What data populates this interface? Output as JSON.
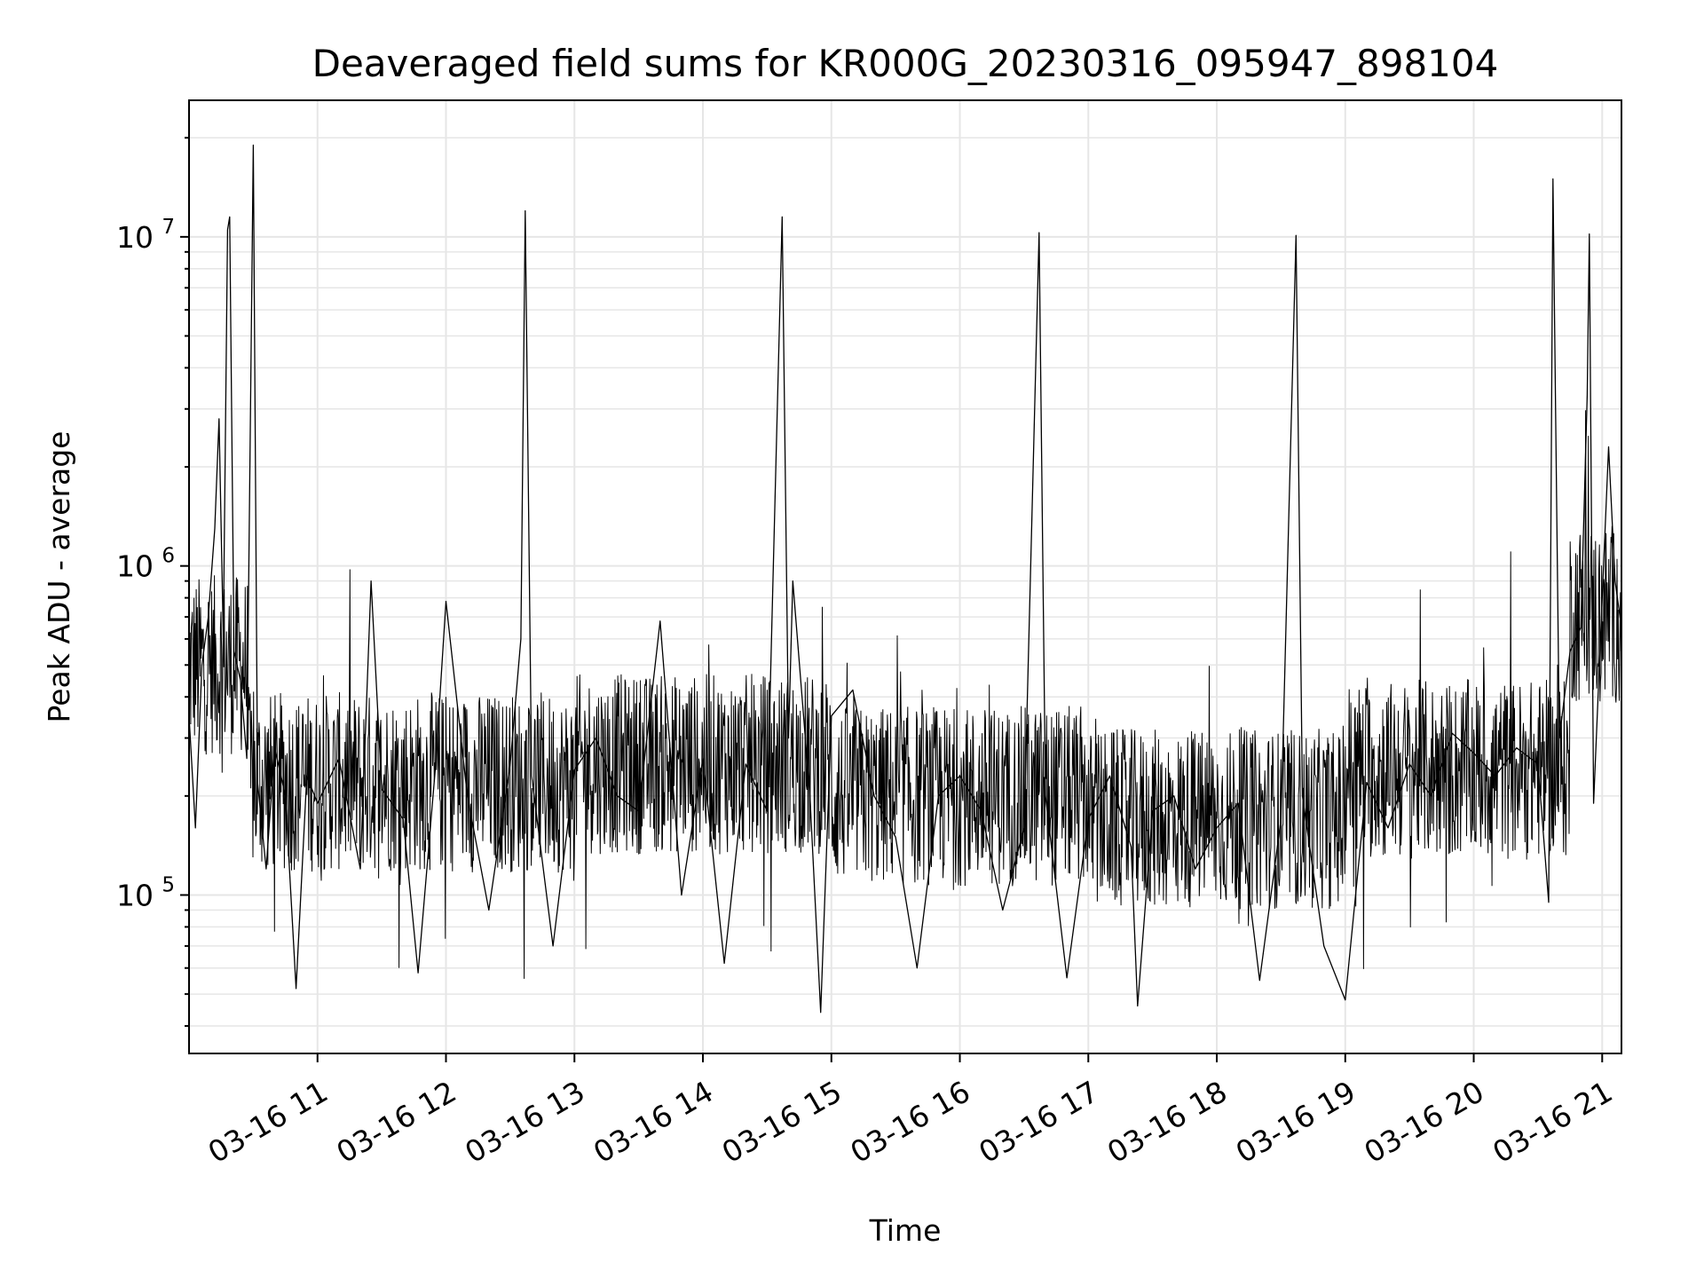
{
  "chart_data": {
    "type": "line",
    "title": "Deaveraged field sums for KR000G_20230316_095947_898104",
    "xlabel": "Time",
    "ylabel": "Peak ADU - average",
    "yscale": "log",
    "ylim": [
      33000,
      26000000
    ],
    "xlim": [
      "2023-03-16 10:00",
      "2023-03-16 21:09"
    ],
    "grid": true,
    "line_color": "#000000",
    "x_ticks": [
      {
        "label": "03-16 11",
        "t": "2023-03-16 11:00"
      },
      {
        "label": "03-16 12",
        "t": "2023-03-16 12:00"
      },
      {
        "label": "03-16 13",
        "t": "2023-03-16 13:00"
      },
      {
        "label": "03-16 14",
        "t": "2023-03-16 14:00"
      },
      {
        "label": "03-16 15",
        "t": "2023-03-16 15:00"
      },
      {
        "label": "03-16 16",
        "t": "2023-03-16 16:00"
      },
      {
        "label": "03-16 17",
        "t": "2023-03-16 17:00"
      },
      {
        "label": "03-16 18",
        "t": "2023-03-16 18:00"
      },
      {
        "label": "03-16 19",
        "t": "2023-03-16 19:00"
      },
      {
        "label": "03-16 20",
        "t": "2023-03-16 20:00"
      },
      {
        "label": "03-16 21",
        "t": "2023-03-16 21:00"
      }
    ],
    "y_ticks": [
      {
        "base": "10",
        "exp": "5",
        "value": 100000
      },
      {
        "base": "10",
        "exp": "6",
        "value": 1000000
      },
      {
        "base": "10",
        "exp": "7",
        "value": 10000000
      }
    ],
    "series": [
      {
        "points": [
          [
            "2023-03-16 10:00",
            350000
          ],
          [
            "2023-03-16 10:03",
            160000
          ],
          [
            "2023-03-16 10:06",
            500000
          ],
          [
            "2023-03-16 10:09",
            700000
          ],
          [
            "2023-03-16 10:12",
            1300000
          ],
          [
            "2023-03-16 10:14",
            2800000
          ],
          [
            "2023-03-16 10:16",
            600000
          ],
          [
            "2023-03-16 10:18",
            10500000
          ],
          [
            "2023-03-16 10:19",
            11500000
          ],
          [
            "2023-03-16 10:21",
            550000
          ],
          [
            "2023-03-16 10:24",
            450000
          ],
          [
            "2023-03-16 10:27",
            260000
          ],
          [
            "2023-03-16 10:30",
            19000000
          ],
          [
            "2023-03-16 10:32",
            220000
          ],
          [
            "2023-03-16 10:36",
            120000
          ],
          [
            "2023-03-16 10:40",
            280000
          ],
          [
            "2023-03-16 10:45",
            200000
          ],
          [
            "2023-03-16 10:50",
            52000
          ],
          [
            "2023-03-16 10:55",
            230000
          ],
          [
            "2023-03-16 11:00",
            190000
          ],
          [
            "2023-03-16 11:10",
            260000
          ],
          [
            "2023-03-16 11:20",
            120000
          ],
          [
            "2023-03-16 11:25",
            900000
          ],
          [
            "2023-03-16 11:30",
            210000
          ],
          [
            "2023-03-16 11:40",
            170000
          ],
          [
            "2023-03-16 11:47",
            58000
          ],
          [
            "2023-03-16 11:55",
            240000
          ],
          [
            "2023-03-16 12:00",
            780000
          ],
          [
            "2023-03-16 12:10",
            200000
          ],
          [
            "2023-03-16 12:20",
            90000
          ],
          [
            "2023-03-16 12:30",
            250000
          ],
          [
            "2023-03-16 12:35",
            600000
          ],
          [
            "2023-03-16 12:37",
            12000000
          ],
          [
            "2023-03-16 12:40",
            230000
          ],
          [
            "2023-03-16 12:50",
            70000
          ],
          [
            "2023-03-16 13:00",
            240000
          ],
          [
            "2023-03-16 13:10",
            300000
          ],
          [
            "2023-03-16 13:20",
            200000
          ],
          [
            "2023-03-16 13:30",
            180000
          ],
          [
            "2023-03-16 13:40",
            680000
          ],
          [
            "2023-03-16 13:50",
            100000
          ],
          [
            "2023-03-16 14:00",
            260000
          ],
          [
            "2023-03-16 14:10",
            62000
          ],
          [
            "2023-03-16 14:20",
            250000
          ],
          [
            "2023-03-16 14:30",
            180000
          ],
          [
            "2023-03-16 14:37",
            11500000
          ],
          [
            "2023-03-16 14:40",
            300000
          ],
          [
            "2023-03-16 14:42",
            900000
          ],
          [
            "2023-03-16 14:50",
            200000
          ],
          [
            "2023-03-16 14:55",
            44000
          ],
          [
            "2023-03-16 15:00",
            350000
          ],
          [
            "2023-03-16 15:10",
            420000
          ],
          [
            "2023-03-16 15:20",
            200000
          ],
          [
            "2023-03-16 15:30",
            150000
          ],
          [
            "2023-03-16 15:40",
            60000
          ],
          [
            "2023-03-16 15:50",
            200000
          ],
          [
            "2023-03-16 16:00",
            230000
          ],
          [
            "2023-03-16 16:10",
            180000
          ],
          [
            "2023-03-16 16:20",
            90000
          ],
          [
            "2023-03-16 16:30",
            160000
          ],
          [
            "2023-03-16 16:37",
            10300000
          ],
          [
            "2023-03-16 16:40",
            200000
          ],
          [
            "2023-03-16 16:50",
            56000
          ],
          [
            "2023-03-16 17:00",
            170000
          ],
          [
            "2023-03-16 17:10",
            230000
          ],
          [
            "2023-03-16 17:20",
            140000
          ],
          [
            "2023-03-16 17:23",
            46000
          ],
          [
            "2023-03-16 17:30",
            180000
          ],
          [
            "2023-03-16 17:40",
            200000
          ],
          [
            "2023-03-16 17:50",
            120000
          ],
          [
            "2023-03-16 18:00",
            160000
          ],
          [
            "2023-03-16 18:10",
            190000
          ],
          [
            "2023-03-16 18:20",
            55000
          ],
          [
            "2023-03-16 18:30",
            170000
          ],
          [
            "2023-03-16 18:37",
            10100000
          ],
          [
            "2023-03-16 18:40",
            200000
          ],
          [
            "2023-03-16 18:50",
            70000
          ],
          [
            "2023-03-16 19:00",
            48000
          ],
          [
            "2023-03-16 19:10",
            220000
          ],
          [
            "2023-03-16 19:20",
            160000
          ],
          [
            "2023-03-16 19:30",
            250000
          ],
          [
            "2023-03-16 19:40",
            200000
          ],
          [
            "2023-03-16 19:50",
            310000
          ],
          [
            "2023-03-16 20:00",
            270000
          ],
          [
            "2023-03-16 20:10",
            230000
          ],
          [
            "2023-03-16 20:20",
            280000
          ],
          [
            "2023-03-16 20:30",
            250000
          ],
          [
            "2023-03-16 20:35",
            95000
          ],
          [
            "2023-03-16 20:37",
            15000000
          ],
          [
            "2023-03-16 20:40",
            300000
          ],
          [
            "2023-03-16 20:45",
            550000
          ],
          [
            "2023-03-16 20:50",
            650000
          ],
          [
            "2023-03-16 20:53",
            3300000
          ],
          [
            "2023-03-16 20:54",
            10200000
          ],
          [
            "2023-03-16 20:56",
            190000
          ],
          [
            "2023-03-16 21:00",
            800000
          ],
          [
            "2023-03-16 21:03",
            2300000
          ],
          [
            "2023-03-16 21:06",
            900000
          ],
          [
            "2023-03-16 21:09",
            650000
          ]
        ]
      }
    ]
  }
}
